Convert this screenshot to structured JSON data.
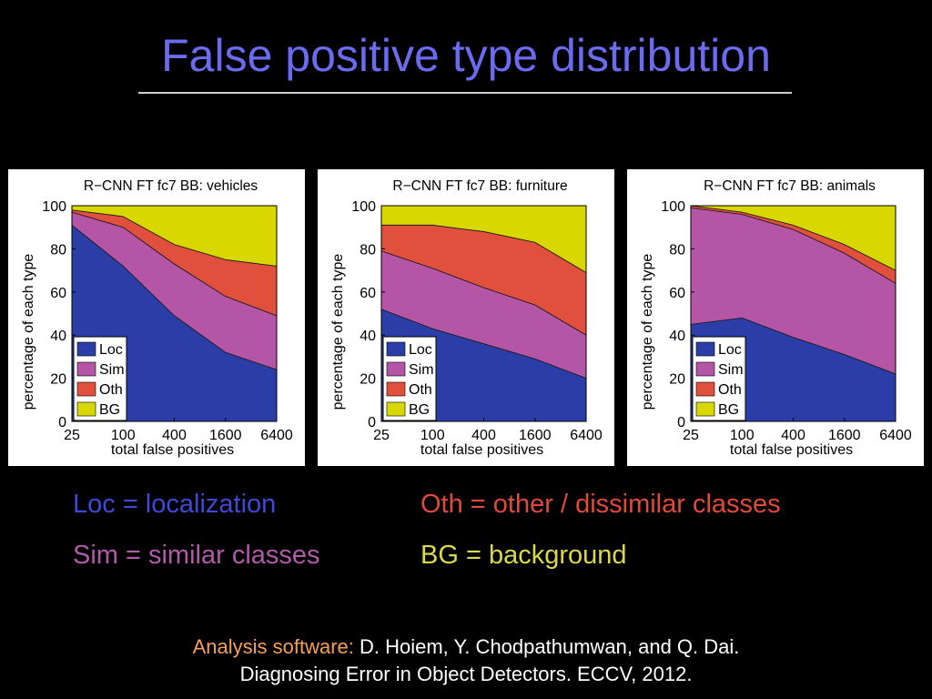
{
  "slide": {
    "title": "False positive type distribution"
  },
  "definitions": {
    "loc": "Loc = localization",
    "sim": "Sim = similar classes",
    "oth": "Oth = other / dissimilar classes",
    "bg": "BG = background"
  },
  "credit": {
    "lead": "Analysis software:",
    "line1_rest": " D. Hoiem, Y. Chodpathumwan, and Q. Dai.",
    "line2": "Diagnosing Error in Object Detectors. ECCV, 2012."
  },
  "colors": {
    "loc": "#2b3ea7",
    "sim": "#b455a6",
    "oth": "#e0503c",
    "bg": "#d8d800",
    "title": "#6b6bf0",
    "def_loc": "#3f49d6",
    "def_sim": "#b05aa8",
    "def_oth": "#e04a3a",
    "def_bg": "#d9d94a",
    "credit_lead": "#f5a05a"
  },
  "chart_data": [
    {
      "type": "area",
      "stacked": true,
      "title": "R−CNN FT fc7 BB: vehicles",
      "xlabel": "total false positives",
      "ylabel": "percentage of each type",
      "x": [
        25,
        100,
        400,
        1600,
        6400
      ],
      "x_scale": "log",
      "ylim": [
        0,
        100
      ],
      "yticks": [
        0,
        20,
        40,
        60,
        80,
        100
      ],
      "legend": [
        "Loc",
        "Sim",
        "Oth",
        "BG"
      ],
      "legend_position": "bottom-left",
      "series": [
        {
          "name": "Loc",
          "values": [
            91,
            72,
            49,
            32,
            24
          ]
        },
        {
          "name": "Sim",
          "values": [
            6,
            18,
            24,
            26,
            25
          ]
        },
        {
          "name": "Oth",
          "values": [
            1,
            5,
            9,
            17,
            23
          ]
        },
        {
          "name": "BG",
          "values": [
            2,
            5,
            18,
            25,
            28
          ]
        }
      ]
    },
    {
      "type": "area",
      "stacked": true,
      "title": "R−CNN FT fc7 BB: furniture",
      "xlabel": "total false positives",
      "ylabel": "percentage of each type",
      "x": [
        25,
        100,
        400,
        1600,
        6400
      ],
      "x_scale": "log",
      "ylim": [
        0,
        100
      ],
      "yticks": [
        0,
        20,
        40,
        60,
        80,
        100
      ],
      "legend": [
        "Loc",
        "Sim",
        "Oth",
        "BG"
      ],
      "legend_position": "bottom-left",
      "series": [
        {
          "name": "Loc",
          "values": [
            52,
            43,
            36,
            29,
            20
          ]
        },
        {
          "name": "Sim",
          "values": [
            27,
            28,
            26,
            25,
            20
          ]
        },
        {
          "name": "Oth",
          "values": [
            12,
            20,
            26,
            29,
            29
          ]
        },
        {
          "name": "BG",
          "values": [
            9,
            9,
            12,
            17,
            31
          ]
        }
      ]
    },
    {
      "type": "area",
      "stacked": true,
      "title": "R−CNN FT fc7 BB: animals",
      "xlabel": "total false positives",
      "ylabel": "percentage of each type",
      "x": [
        25,
        100,
        400,
        1600,
        6400
      ],
      "x_scale": "log",
      "ylim": [
        0,
        100
      ],
      "yticks": [
        0,
        20,
        40,
        60,
        80,
        100
      ],
      "legend": [
        "Loc",
        "Sim",
        "Oth",
        "BG"
      ],
      "legend_position": "bottom-left",
      "series": [
        {
          "name": "Loc",
          "values": [
            45,
            48,
            39,
            31,
            22
          ]
        },
        {
          "name": "Sim",
          "values": [
            54,
            48,
            50,
            47,
            42
          ]
        },
        {
          "name": "Oth",
          "values": [
            1,
            1,
            2,
            4,
            6
          ]
        },
        {
          "name": "BG",
          "values": [
            0,
            3,
            9,
            18,
            30
          ]
        }
      ]
    }
  ]
}
